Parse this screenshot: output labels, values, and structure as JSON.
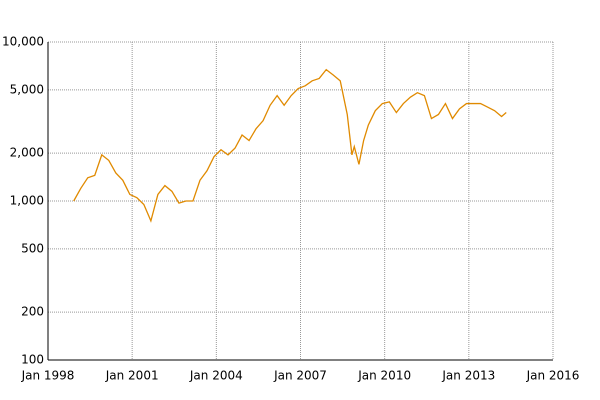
{
  "chart_data": {
    "type": "line",
    "log_y": true,
    "grid": true,
    "xlim": [
      "1998-01",
      "2016-01"
    ],
    "xticks": [
      {
        "value": "1998-01",
        "label": "Jan 1998"
      },
      {
        "value": "2001-01",
        "label": "Jan 2001"
      },
      {
        "value": "2004-01",
        "label": "Jan 2004"
      },
      {
        "value": "2007-01",
        "label": "Jan 2007"
      },
      {
        "value": "2010-01",
        "label": "Jan 2010"
      },
      {
        "value": "2013-01",
        "label": "Jan 2013"
      },
      {
        "value": "2016-01",
        "label": "Jan 2016"
      }
    ],
    "ylim": [
      100,
      10000
    ],
    "yticks": [
      100,
      200,
      500,
      {
        "value": 1000,
        "label": "1,000"
      },
      {
        "value": 2000,
        "label": "2,000"
      },
      {
        "value": 5000,
        "label": "5,000"
      },
      {
        "value": 10000,
        "label": "10,000"
      }
    ],
    "x": [
      "1998-12",
      "1999-03",
      "1999-06",
      "1999-09",
      "1999-12",
      "2000-03",
      "2000-06",
      "2000-09",
      "2000-12",
      "2001-03",
      "2001-06",
      "2001-09",
      "2001-12",
      "2002-03",
      "2002-06",
      "2002-09",
      "2002-12",
      "2003-03",
      "2003-06",
      "2003-09",
      "2003-12",
      "2004-03",
      "2004-06",
      "2004-09",
      "2004-12",
      "2005-03",
      "2005-06",
      "2005-09",
      "2005-12",
      "2006-03",
      "2006-06",
      "2006-09",
      "2006-12",
      "2007-03",
      "2007-06",
      "2007-09",
      "2007-12",
      "2008-03",
      "2008-06",
      "2008-09",
      "2008-11",
      "2008-12",
      "2009-02",
      "2009-04",
      "2009-06",
      "2009-09",
      "2009-12",
      "2010-03",
      "2010-06",
      "2010-09",
      "2010-12",
      "2011-03",
      "2011-06",
      "2011-09",
      "2011-12",
      "2012-03",
      "2012-06",
      "2012-09",
      "2012-12",
      "2013-03",
      "2013-06",
      "2013-09",
      "2013-12",
      "2014-03",
      "2014-05"
    ],
    "series": [
      {
        "color": "#e08a00",
        "values": [
          1000,
          1200,
          1400,
          1450,
          1950,
          1800,
          1500,
          1350,
          1100,
          1050,
          950,
          750,
          1100,
          1250,
          1150,
          970,
          1000,
          1000,
          1350,
          1550,
          1900,
          2100,
          1950,
          2150,
          2600,
          2400,
          2850,
          3200,
          4000,
          4600,
          4000,
          4600,
          5100,
          5300,
          5700,
          5900,
          6700,
          6200,
          5700,
          3500,
          1950,
          2200,
          1700,
          2400,
          3000,
          3700,
          4100,
          4200,
          3600,
          4100,
          4500,
          4800,
          4600,
          3300,
          3500,
          4100,
          3300,
          3800,
          4100,
          4100,
          4100,
          3900,
          3700,
          3400,
          3600
        ]
      }
    ]
  }
}
